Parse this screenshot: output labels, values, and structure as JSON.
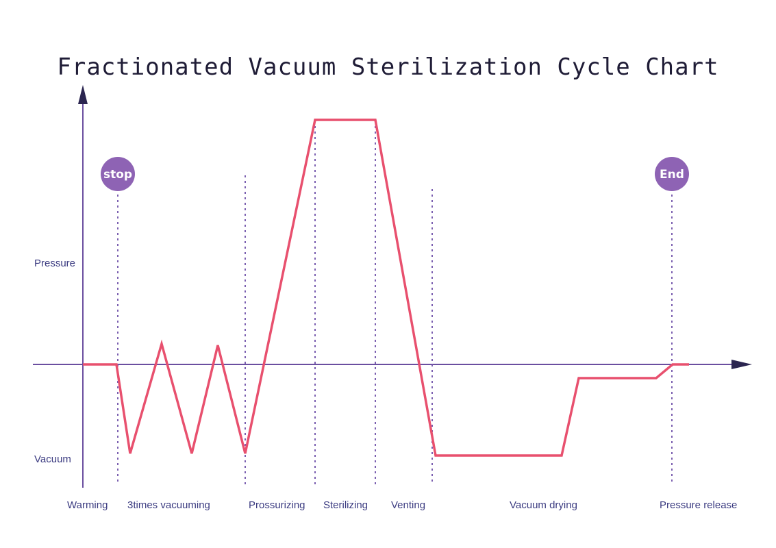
{
  "title": "Fractionated Vacuum Sterilization Cycle Chart",
  "y_labels": {
    "top": "Pressure",
    "bottom": "Vacuum"
  },
  "badges": {
    "start": "stop",
    "end": "End"
  },
  "phases": [
    "Warming",
    "3times vacuuming",
    "Prossurizing",
    "Sterilizing",
    "Venting",
    "Vacuum drying",
    "Pressure release"
  ],
  "colors": {
    "curve": "#e8506e",
    "axis": "#6b4fa0",
    "badge": "#8e63b4",
    "label": "#3a3a80"
  }
}
